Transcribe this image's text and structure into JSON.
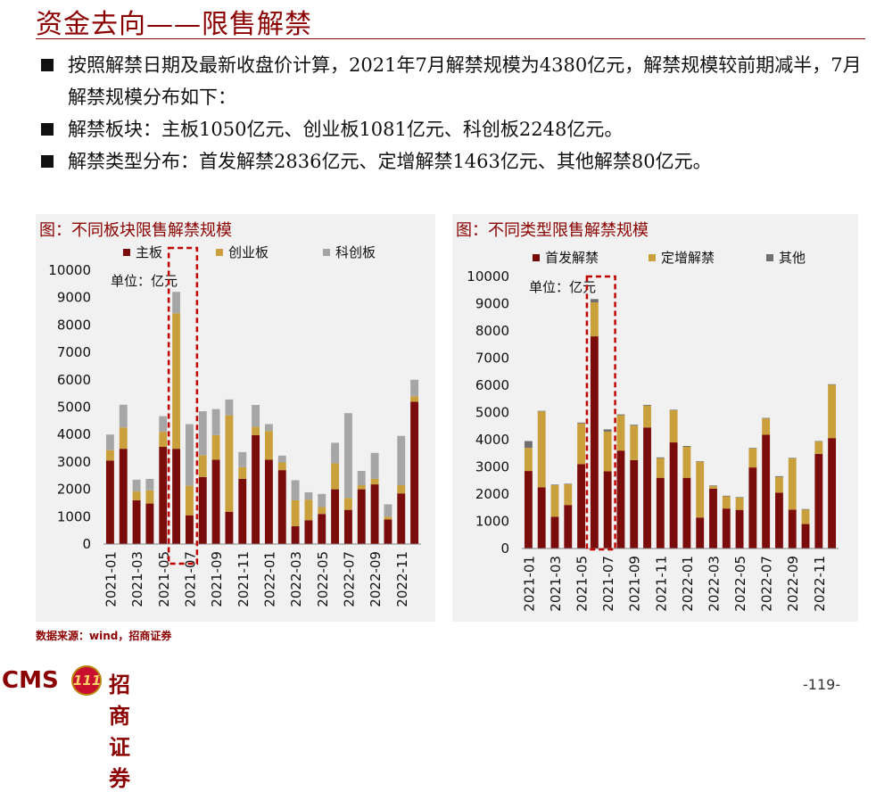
{
  "page": {
    "title": "资金去向——限售解禁",
    "bullets": [
      "按照解禁日期及最新收盘价计算，2021年7月解禁规模为4380亿元，解禁规模较前期减半，7月解禁规模分布如下：",
      "解禁板块：主板1050亿元、创业板1081亿元、科创板2248亿元。",
      "解禁类型分布：首发解禁2836亿元、定增解禁1463亿元、其他解禁80亿元。"
    ],
    "source": "数据来源：wind，招商证券",
    "logo": {
      "cms": "CMS",
      "badge": "111",
      "name": "招商证券"
    },
    "page_number": "-119-"
  },
  "colors": {
    "dark_red": "#7b0c0c",
    "gold": "#c9a03c",
    "gray": "#a6a6a6",
    "dark_gray": "#6e6e6e",
    "accent": "#8b0000",
    "highlight": "#c00000"
  },
  "chart_data": [
    {
      "type": "bar",
      "stacked": true,
      "title": "图：不同板块限售解禁规模",
      "unit_label": "单位：亿元",
      "categories": [
        "2021-01",
        "2021-02",
        "2021-03",
        "2021-04",
        "2021-05",
        "2021-06",
        "2021-07",
        "2021-08",
        "2021-09",
        "2021-10",
        "2021-11",
        "2021-12",
        "2022-01",
        "2022-02",
        "2022-03",
        "2022-04",
        "2022-05",
        "2022-06",
        "2022-07",
        "2022-08",
        "2022-09",
        "2022-10",
        "2022-11",
        "2022-12"
      ],
      "tick_labels": [
        "2021-01",
        "",
        "2021-03",
        "",
        "2021-05",
        "",
        "2021-07",
        "",
        "2021-09",
        "",
        "2021-11",
        "",
        "2022-01",
        "",
        "2022-03",
        "",
        "2022-05",
        "",
        "2022-07",
        "",
        "2022-09",
        "",
        "2022-11",
        ""
      ],
      "series": [
        {
          "name": "主板",
          "color": "#7b0c0c",
          "values": [
            3050,
            3480,
            1600,
            1480,
            3550,
            3480,
            1050,
            2450,
            3080,
            1180,
            2380,
            3980,
            3080,
            2700,
            650,
            870,
            1100,
            2000,
            1250,
            2000,
            2180,
            900,
            1850,
            5200
          ]
        },
        {
          "name": "创业板",
          "color": "#c9a03c",
          "values": [
            380,
            780,
            320,
            480,
            550,
            4950,
            1081,
            800,
            900,
            3520,
            430,
            300,
            1050,
            280,
            950,
            750,
            250,
            950,
            430,
            150,
            200,
            100,
            300,
            200
          ]
        },
        {
          "name": "科创板",
          "color": "#a6a6a6",
          "values": [
            570,
            830,
            430,
            420,
            570,
            780,
            2248,
            1600,
            950,
            580,
            550,
            800,
            250,
            250,
            730,
            270,
            480,
            750,
            3100,
            520,
            950,
            450,
            1800,
            600
          ]
        }
      ],
      "yticks": [
        0,
        1000,
        2000,
        3000,
        4000,
        5000,
        6000,
        7000,
        8000,
        9000,
        10000
      ],
      "ylim": [
        0,
        10000
      ],
      "highlight_range": [
        "2021-06",
        "2021-07"
      ]
    },
    {
      "type": "bar",
      "stacked": true,
      "title": "图：不同类型限售解禁规模",
      "unit_label": "单位：亿元",
      "categories": [
        "2021-01",
        "2021-02",
        "2021-03",
        "2021-04",
        "2021-05",
        "2021-06",
        "2021-07",
        "2021-08",
        "2021-09",
        "2021-10",
        "2021-11",
        "2021-12",
        "2022-01",
        "2022-02",
        "2022-03",
        "2022-04",
        "2022-05",
        "2022-06",
        "2022-07",
        "2022-08",
        "2022-09",
        "2022-10",
        "2022-11",
        "2022-12"
      ],
      "tick_labels": [
        "2021-01",
        "",
        "2021-03",
        "",
        "2021-05",
        "",
        "2021-07",
        "",
        "2021-09",
        "",
        "2021-11",
        "",
        "2022-01",
        "",
        "2022-03",
        "",
        "2022-05",
        "",
        "2022-07",
        "",
        "2022-09",
        "",
        "2022-11",
        ""
      ],
      "series": [
        {
          "name": "首发解禁",
          "color": "#7b0c0c",
          "values": [
            2850,
            2250,
            1170,
            1600,
            3100,
            7800,
            2836,
            3600,
            3250,
            4450,
            2600,
            3900,
            2600,
            1140,
            2200,
            1470,
            1420,
            2980,
            4180,
            2050,
            1430,
            900,
            3480,
            4060
          ]
        },
        {
          "name": "定增解禁",
          "color": "#c9a03c",
          "values": [
            850,
            2790,
            1160,
            760,
            1500,
            1250,
            1463,
            1300,
            1270,
            800,
            720,
            1180,
            1140,
            2050,
            100,
            450,
            450,
            700,
            600,
            580,
            1880,
            530,
            450,
            1960
          ]
        },
        {
          "name": "其他",
          "color": "#6e6e6e",
          "values": [
            250,
            20,
            20,
            20,
            30,
            120,
            80,
            30,
            30,
            30,
            30,
            20,
            30,
            20,
            20,
            20,
            20,
            20,
            20,
            30,
            20,
            20,
            20,
            20
          ]
        }
      ],
      "yticks": [
        0,
        1000,
        2000,
        3000,
        4000,
        5000,
        6000,
        7000,
        8000,
        9000,
        10000
      ],
      "ylim": [
        0,
        10000
      ],
      "highlight_range": [
        "2021-06",
        "2021-07"
      ]
    }
  ]
}
